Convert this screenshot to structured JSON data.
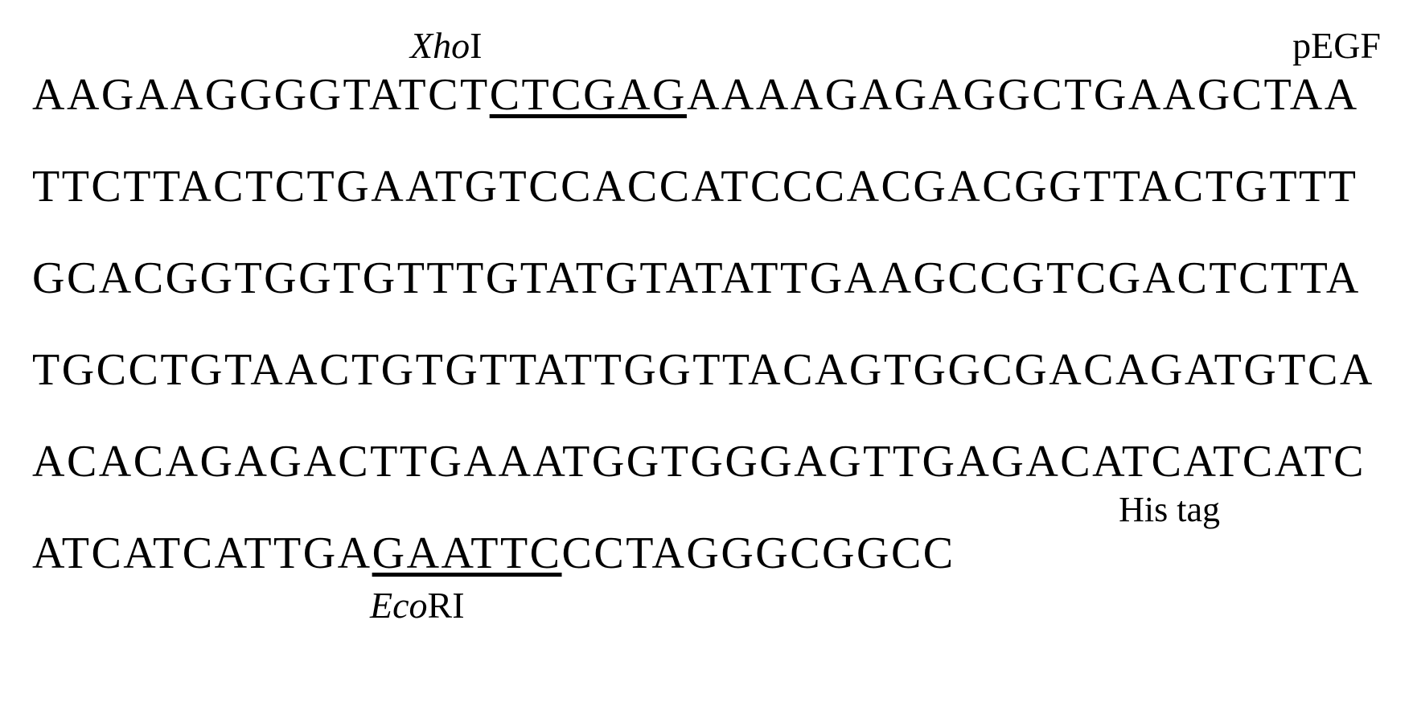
{
  "labels": {
    "xhoI_italic": "Xho",
    "xhoI_roman": "I",
    "pEGF": "pEGF",
    "hisTag": "His tag",
    "ecoRI_italic": "Eco",
    "ecoRI_roman": "RI"
  },
  "sequence": {
    "line1": {
      "before_underline": "AAGAAGGGGTATCT",
      "underlined": "CTCGAG",
      "after_underline": "AAAAGAGAGGCTGAAGCTAA"
    },
    "line2": "TTCTTACTCTGAATGTCCACCATCCCACGACGGTTACTGTTT",
    "line3": "GCACGGTGGTGTTTGTATGTATATTGAAGCCGTCGACTCTTA",
    "line4": "TGCCTGTAACTGTGTTATTGGTTACAGTGGCGACAGATGTCA",
    "line5": "ACACAGAGACTTGAAATGGTGGGAGTTGAGACATCATCATC",
    "line6": {
      "before_underline": "ATCATCATTGA",
      "underlined": "GAATTC",
      "after_underline": "CCTAGGGCGGCC"
    }
  },
  "styling": {
    "background_color": "#ffffff",
    "text_color": "#000000",
    "sequence_font_size": 56,
    "label_font_size": 46,
    "font_family": "Times New Roman",
    "letter_spacing": 2.5,
    "line_spacing": 58
  }
}
